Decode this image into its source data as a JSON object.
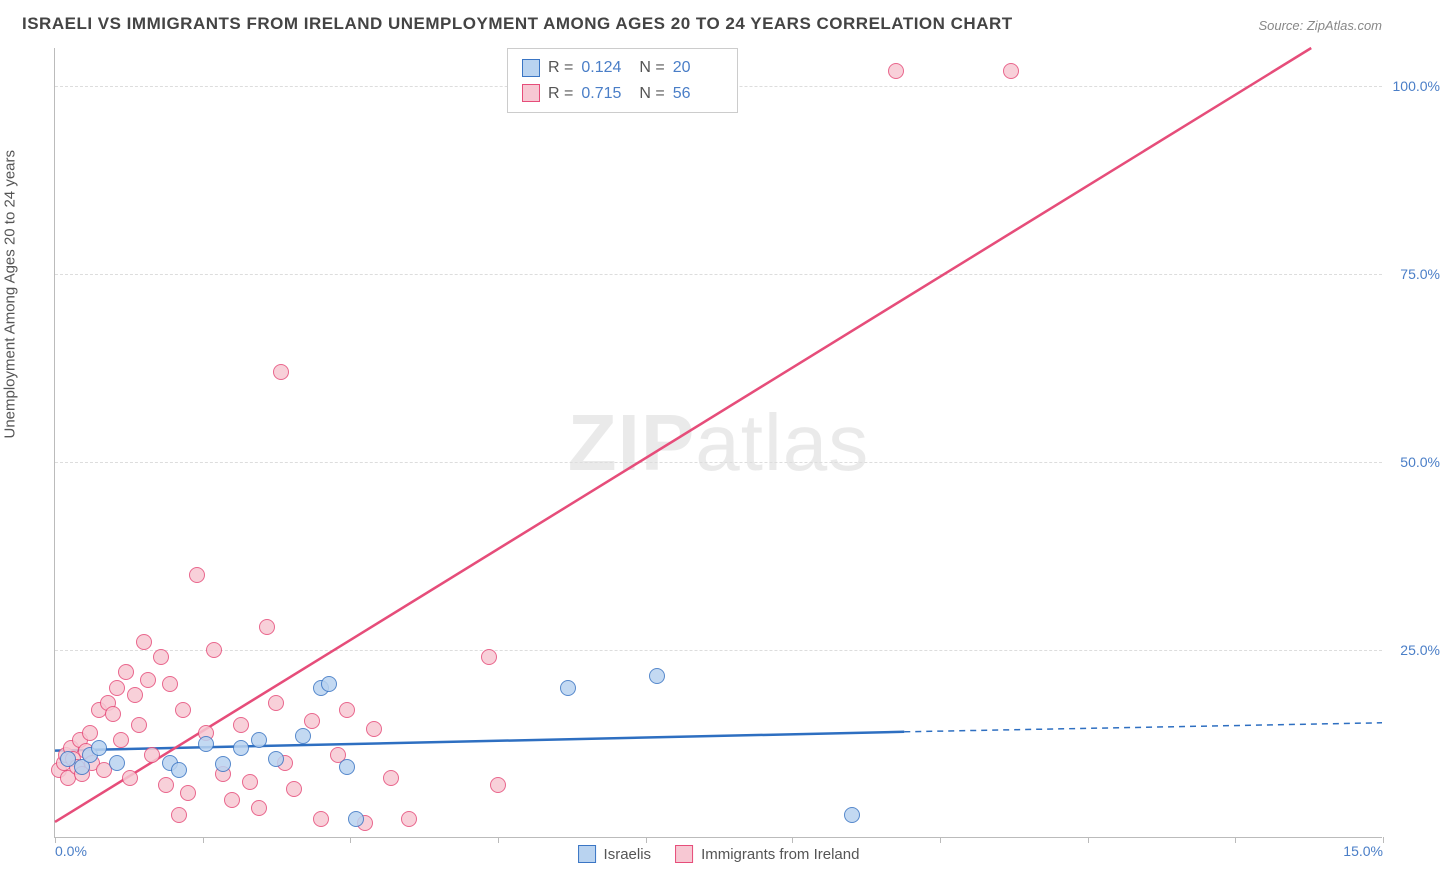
{
  "title": "ISRAELI VS IMMIGRANTS FROM IRELAND UNEMPLOYMENT AMONG AGES 20 TO 24 YEARS CORRELATION CHART",
  "source": "Source: ZipAtlas.com",
  "ylabel": "Unemployment Among Ages 20 to 24 years",
  "watermark_bold": "ZIP",
  "watermark_light": "atlas",
  "chart": {
    "type": "scatter",
    "background_color": "#ffffff",
    "grid_color": "#dddddd",
    "axis_color": "#bbbbbb",
    "tick_label_color": "#4a7ec7",
    "tick_fontsize": 14,
    "xlim": [
      0,
      15
    ],
    "ylim": [
      0,
      105
    ],
    "xticks": [
      0,
      1.67,
      3.33,
      5,
      6.67,
      8.33,
      10,
      11.67,
      13.33,
      15
    ],
    "xtick_labels_shown": {
      "0": "0.0%",
      "15": "15.0%"
    },
    "yticks": [
      25,
      50,
      75,
      100
    ],
    "ytick_labels": [
      "25.0%",
      "50.0%",
      "75.0%",
      "100.0%"
    ],
    "series": [
      {
        "name": "Israelis",
        "fill": "#b9d3f0",
        "stroke": "#3a75c4",
        "line_color": "#2e6fc1",
        "line_width": 2.5,
        "marker_radius": 8,
        "R": "0.124",
        "N": "20",
        "trend": {
          "x1": 0,
          "y1": 11.5,
          "x2": 9.6,
          "y2": 14.0,
          "x2_ext": 15,
          "y2_ext": 15.2,
          "dashed_after": 9.6
        },
        "points": [
          [
            0.15,
            10.5
          ],
          [
            0.3,
            9.5
          ],
          [
            0.4,
            11
          ],
          [
            0.5,
            12
          ],
          [
            0.7,
            10
          ],
          [
            1.3,
            10
          ],
          [
            1.4,
            9
          ],
          [
            1.7,
            12.5
          ],
          [
            1.9,
            9.8
          ],
          [
            2.1,
            12
          ],
          [
            2.3,
            13
          ],
          [
            2.5,
            10.5
          ],
          [
            2.8,
            13.5
          ],
          [
            3.0,
            20
          ],
          [
            3.1,
            20.5
          ],
          [
            3.3,
            9.5
          ],
          [
            3.4,
            2.5
          ],
          [
            5.8,
            20
          ],
          [
            6.8,
            21.5
          ],
          [
            9.0,
            3
          ]
        ]
      },
      {
        "name": "Immigrants from Ireland",
        "fill": "#f7c8d3",
        "stroke": "#e64d7a",
        "line_color": "#e64d7a",
        "line_width": 2.5,
        "marker_radius": 8,
        "R": "0.715",
        "N": "56",
        "trend": {
          "x1": 0,
          "y1": 2,
          "x2": 14.2,
          "y2": 105
        },
        "points": [
          [
            0.05,
            9
          ],
          [
            0.1,
            10
          ],
          [
            0.12,
            11
          ],
          [
            0.15,
            8
          ],
          [
            0.18,
            12
          ],
          [
            0.2,
            10.5
          ],
          [
            0.25,
            9.5
          ],
          [
            0.28,
            13
          ],
          [
            0.3,
            8.5
          ],
          [
            0.35,
            11.5
          ],
          [
            0.4,
            14
          ],
          [
            0.42,
            10
          ],
          [
            0.5,
            17
          ],
          [
            0.55,
            9
          ],
          [
            0.6,
            18
          ],
          [
            0.65,
            16.5
          ],
          [
            0.7,
            20
          ],
          [
            0.75,
            13
          ],
          [
            0.8,
            22
          ],
          [
            0.85,
            8
          ],
          [
            0.9,
            19
          ],
          [
            0.95,
            15
          ],
          [
            1.0,
            26
          ],
          [
            1.05,
            21
          ],
          [
            1.1,
            11
          ],
          [
            1.2,
            24
          ],
          [
            1.25,
            7
          ],
          [
            1.3,
            20.5
          ],
          [
            1.4,
            3
          ],
          [
            1.45,
            17
          ],
          [
            1.5,
            6
          ],
          [
            1.6,
            35
          ],
          [
            1.7,
            14
          ],
          [
            1.8,
            25
          ],
          [
            1.9,
            8.5
          ],
          [
            2.0,
            5
          ],
          [
            2.1,
            15
          ],
          [
            2.2,
            7.5
          ],
          [
            2.3,
            4
          ],
          [
            2.4,
            28
          ],
          [
            2.5,
            18
          ],
          [
            2.55,
            62
          ],
          [
            2.6,
            10
          ],
          [
            2.7,
            6.5
          ],
          [
            2.9,
            15.5
          ],
          [
            3.0,
            2.5
          ],
          [
            3.2,
            11
          ],
          [
            3.3,
            17
          ],
          [
            3.5,
            2
          ],
          [
            3.6,
            14.5
          ],
          [
            3.8,
            8
          ],
          [
            4.0,
            2.5
          ],
          [
            4.9,
            24
          ],
          [
            5.0,
            7
          ],
          [
            9.5,
            102
          ],
          [
            10.8,
            102
          ]
        ]
      }
    ]
  },
  "legend_bottom": [
    {
      "label": "Israelis",
      "fill": "#b9d3f0",
      "stroke": "#3a75c4"
    },
    {
      "label": "Immigrants from Ireland",
      "fill": "#f7c8d3",
      "stroke": "#e64d7a"
    }
  ]
}
